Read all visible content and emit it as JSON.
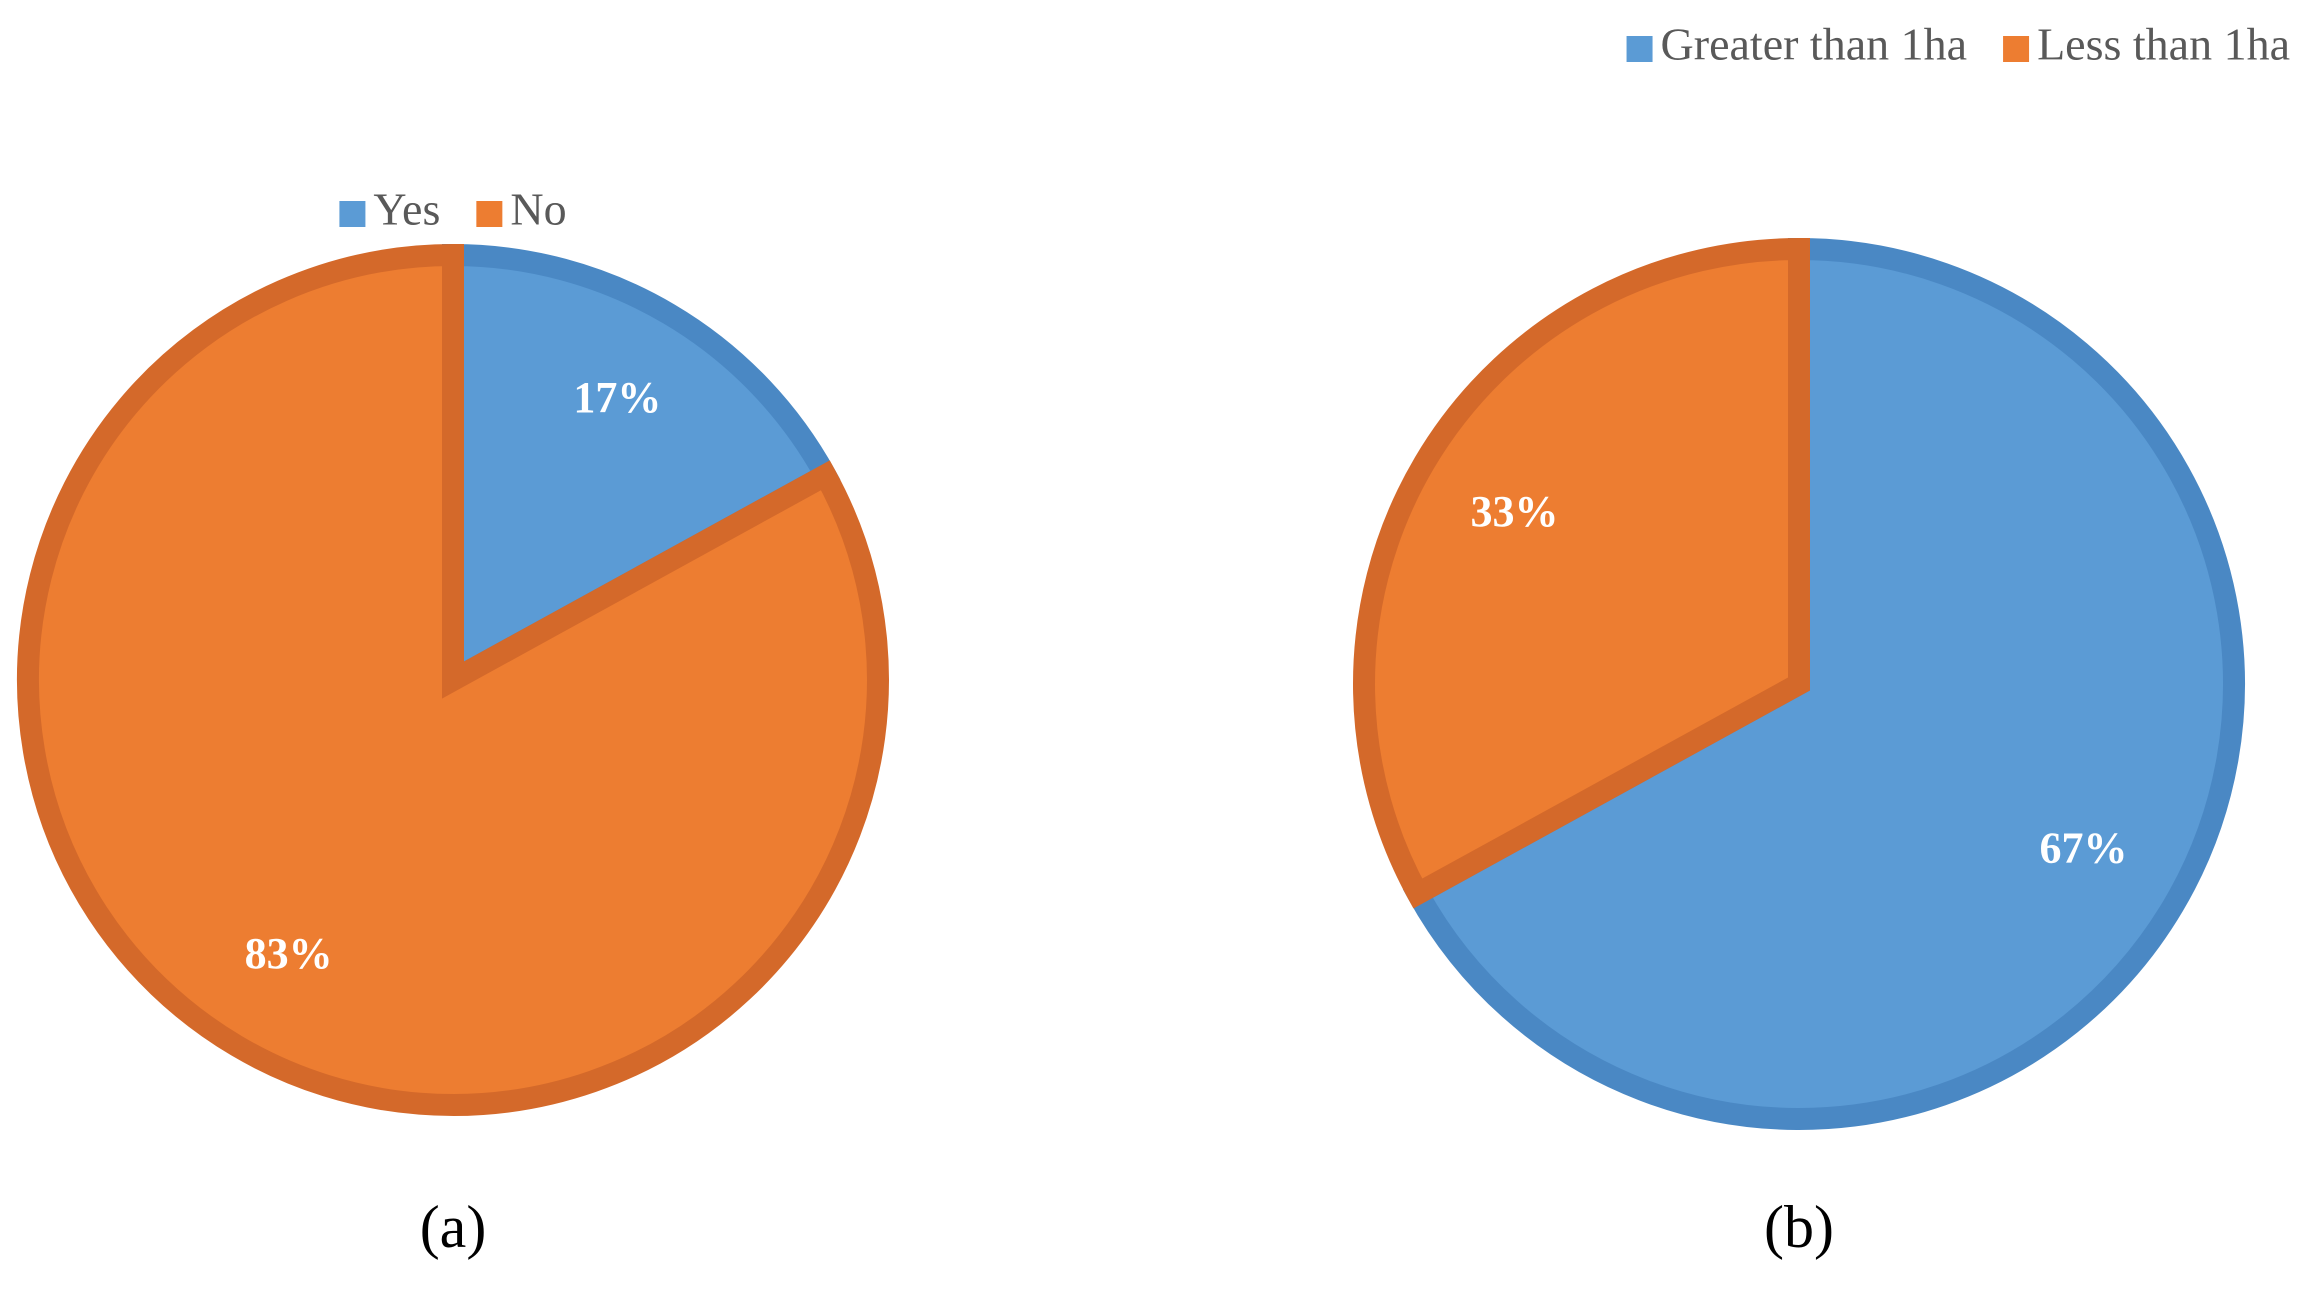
{
  "chart_data": [
    {
      "type": "pie",
      "caption": "(a)",
      "categories": [
        "Yes",
        "No"
      ],
      "values": [
        17,
        83
      ],
      "value_labels": [
        "17%",
        "83%"
      ],
      "colors": [
        "#5b9bd5",
        "#ed7d31"
      ],
      "edge_colors": [
        "#4a88c4",
        "#d4692a"
      ],
      "legend": "top"
    },
    {
      "type": "pie",
      "caption": "(b)",
      "categories": [
        "Greater than 1ha",
        "Less than 1ha"
      ],
      "values": [
        67,
        33
      ],
      "value_labels": [
        "67%",
        "33%"
      ],
      "colors": [
        "#5b9bd5",
        "#ed7d31"
      ],
      "edge_colors": [
        "#4a88c4",
        "#d4692a"
      ],
      "legend": "top-right"
    }
  ]
}
